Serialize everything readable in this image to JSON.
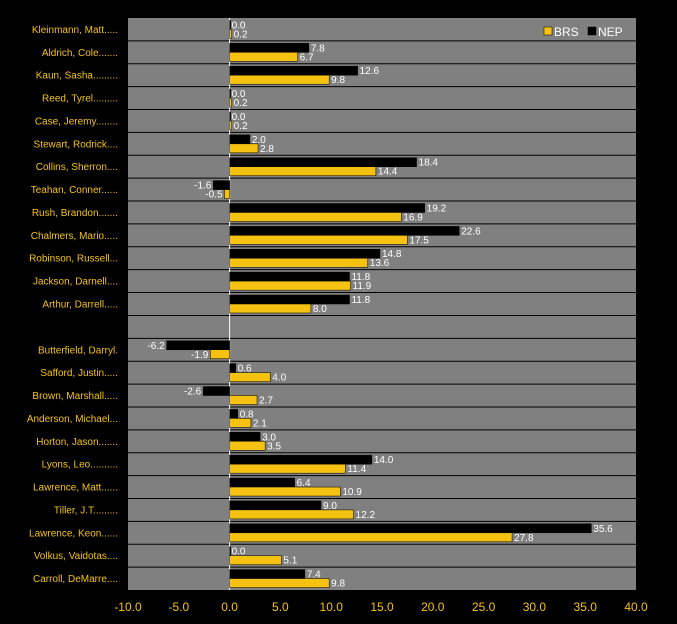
{
  "chart_data": {
    "type": "bar",
    "orientation": "horizontal",
    "categories": [
      "Kleinmann, Matt.....",
      "Aldrich, Cole.......",
      "Kaun, Sasha.........",
      "Reed, Tyrel.........",
      "Case, Jeremy........",
      "Stewart, Rodrick....",
      "Collins, Sherron....",
      "Teahan, Conner......",
      "Rush, Brandon.......",
      "Chalmers, Mario.....",
      "Robinson, Russell...",
      "Jackson, Darnell....",
      "Arthur, Darrell.....",
      "",
      "Butterfield, Darryl.",
      "Safford, Justin.....",
      "Brown, Marshall.....",
      "Anderson, Michael...",
      "Horton, Jason.......",
      "Lyons, Leo..........",
      "Lawrence, Matt......",
      "Tiller, J.T.........",
      "Lawrence, Keon......",
      "Volkus, Vaidotas....",
      "Carroll, DeMarre...."
    ],
    "series": [
      {
        "name": "NEP",
        "color": "#000000",
        "values": [
          0.0,
          7.8,
          12.6,
          0.0,
          0.0,
          2.0,
          18.4,
          -1.6,
          19.2,
          22.6,
          14.8,
          11.8,
          11.8,
          null,
          -6.2,
          0.6,
          -2.6,
          0.8,
          3.0,
          14.0,
          6.4,
          9.0,
          35.6,
          0.0,
          7.4
        ],
        "labels": [
          "0.0",
          "7.8",
          "12.6",
          "0.0",
          "0.0",
          "2.0",
          "18.4",
          "-1.6",
          "19.2",
          "22.6",
          "14.8",
          "11.8",
          "11.8",
          "",
          "-6.2",
          "0.6",
          "-2.6",
          "0.8",
          "3.0",
          "14.0",
          "6.4",
          "9.0",
          "35.6",
          "0.0",
          "7.4"
        ]
      },
      {
        "name": "BRS",
        "color": "#f5c211",
        "values": [
          0.2,
          6.7,
          9.8,
          0.2,
          0.2,
          2.8,
          14.4,
          -0.5,
          16.9,
          17.5,
          13.6,
          11.9,
          8.0,
          null,
          -1.9,
          4.0,
          2.7,
          2.1,
          3.5,
          11.4,
          10.9,
          12.2,
          27.8,
          5.1,
          9.8
        ],
        "labels": [
          "0.2",
          "6.7",
          "9.8",
          "0.2",
          "0.2",
          "2.8",
          "14.4",
          "-0.5",
          "16.9",
          "17.5",
          "13.6",
          "11.9",
          "8.0",
          "",
          "-1.9",
          "4.0",
          "2.7",
          "2.1",
          "3.5",
          "11.4",
          "10.9",
          "12.2",
          "27.8",
          "5.1",
          "9.8"
        ]
      }
    ],
    "xlim": [
      -10,
      40
    ],
    "xticks": [
      "-10.0",
      "-5.0",
      "0.0",
      "5.0",
      "10.0",
      "15.0",
      "20.0",
      "25.0",
      "30.0",
      "35.0",
      "40.0"
    ],
    "grid": "horizontal",
    "legend": {
      "position": "top-right",
      "entries": [
        "BRS",
        "NEP"
      ]
    },
    "colors": {
      "background": "#000000",
      "plot_area": "#808080",
      "label_text": "#f5c211",
      "value_text": "#ffffff",
      "gridline": "#000000"
    }
  }
}
